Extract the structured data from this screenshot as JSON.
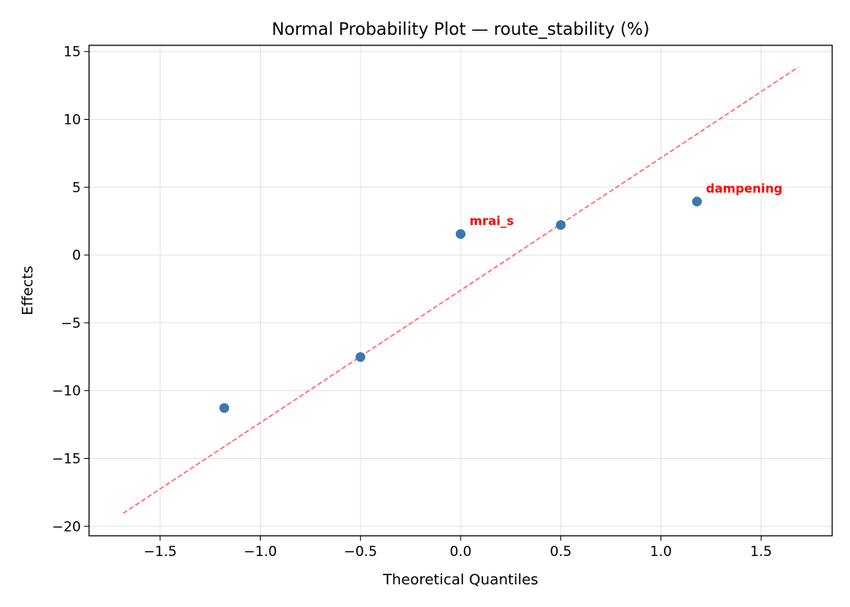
{
  "chart_data": {
    "type": "scatter",
    "title": "Normal Probability Plot — route_stability (%)",
    "xlabel": "Theoretical Quantiles",
    "ylabel": "Effects",
    "xlim": [
      -1.855,
      1.855
    ],
    "ylim": [
      -20.7,
      15.46
    ],
    "xticks": [
      -1.5,
      -1.0,
      -0.5,
      0.0,
      0.5,
      1.0,
      1.5
    ],
    "xtick_labels": [
      "−1.5",
      "−1.0",
      "−0.5",
      "0.0",
      "0.5",
      "1.0",
      "1.5"
    ],
    "yticks": [
      15,
      10,
      5,
      0,
      -5,
      -10,
      -15,
      -20
    ],
    "ytick_labels": [
      "15",
      "10",
      "5",
      "0",
      "−5",
      "−10",
      "−15",
      "−20"
    ],
    "grid": true,
    "points": [
      {
        "x": -1.18,
        "y": -11.28,
        "label": ""
      },
      {
        "x": -0.5,
        "y": -7.52,
        "label": ""
      },
      {
        "x": 0.0,
        "y": 1.55,
        "label": "mrai_s"
      },
      {
        "x": 0.5,
        "y": 2.21,
        "label": ""
      },
      {
        "x": 1.18,
        "y": 3.94,
        "label": "dampening"
      }
    ],
    "reference_line": {
      "x": [
        -1.685,
        1.685
      ],
      "y": [
        -19.05,
        13.85
      ],
      "style": "dashed"
    },
    "colors": {
      "points": "#3d78ad",
      "line": "#ff6666",
      "labels": "#ff0000"
    }
  }
}
